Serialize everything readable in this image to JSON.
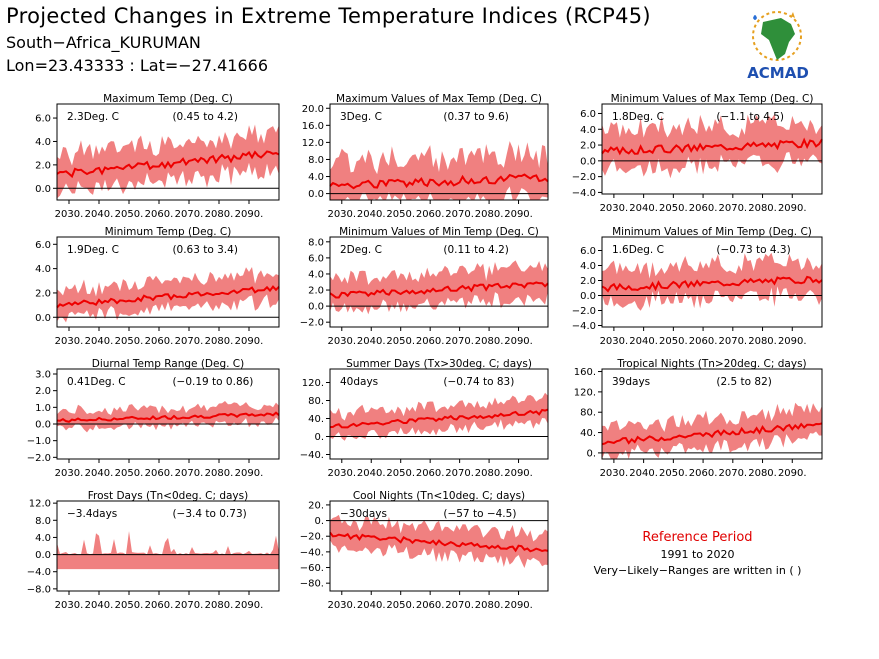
{
  "header": {
    "title": "Projected Changes in Extreme Temperature Indices (RCP45)",
    "location": "South−Africa_KURUMAN",
    "coords": "Lon=23.43333 : Lat=−27.41666"
  },
  "logo": {
    "text": "ACMAD",
    "icon": "africa-logo-icon"
  },
  "reference": {
    "title": "Reference Period",
    "years": "1991 to 2020",
    "note": "Very−Likely−Ranges are written in ( )"
  },
  "colors": {
    "band": "#f08080",
    "line": "#ee0000",
    "ref_title": "#e00000"
  },
  "chart_data": [
    {
      "id": "p1",
      "type": "area",
      "title": "Maximum Temp (Deg. C)",
      "mean_label": "2.3Deg. C",
      "range_label": "(0.45 to 4.2)",
      "ylim": [
        -1.0,
        7.2
      ],
      "yticks": [
        0.0,
        2.0,
        4.0,
        6.0
      ],
      "ytick_labels": [
        "0.0",
        "2.0",
        "4.0",
        "6.0"
      ],
      "xlim": [
        2026,
        2100
      ],
      "xticks": [
        2030,
        2040,
        2050,
        2060,
        2070,
        2080,
        2090
      ],
      "xtick_labels": [
        "2030.",
        "2040.",
        "2050.",
        "2060.",
        "2070.",
        "2080.",
        "2090."
      ],
      "mean_start": 1.2,
      "mean_end": 3.0,
      "spread": 1.8,
      "seed": 1
    },
    {
      "id": "p2",
      "type": "area",
      "title": "Maximum Values of Max Temp (Deg. C)",
      "mean_label": "3Deg. C",
      "range_label": "(0.37 to 9.6)",
      "ylim": [
        -1.5,
        21
      ],
      "yticks": [
        0.0,
        4.0,
        8.0,
        12.0,
        16.0,
        20.0
      ],
      "ytick_labels": [
        "0.0",
        "4.0",
        "8.0",
        "12.0",
        "16.0",
        "20.0"
      ],
      "xlim": [
        2026,
        2100
      ],
      "xticks": [
        2030,
        2040,
        2050,
        2060,
        2070,
        2080,
        2090
      ],
      "xtick_labels": [
        "2030.",
        "2040.",
        "2050.",
        "2060.",
        "2070.",
        "2080.",
        "2090."
      ],
      "mean_start": 2.0,
      "mean_end": 3.6,
      "spread": 6.0,
      "seed": 2
    },
    {
      "id": "p3",
      "type": "area",
      "title": "Minimum Values of Max Temp (Deg. C)",
      "mean_label": "1.8Deg. C",
      "range_label": "(−1.1 to 4.5)",
      "ylim": [
        -4.2,
        7.2
      ],
      "yticks": [
        -4.0,
        -2.0,
        0.0,
        2.0,
        4.0,
        6.0
      ],
      "ytick_labels": [
        "−4.0",
        "−2.0",
        "0.0",
        "2.0",
        "4.0",
        "6.0"
      ],
      "xlim": [
        2026,
        2100
      ],
      "xticks": [
        2030,
        2040,
        2050,
        2060,
        2070,
        2080,
        2090
      ],
      "xtick_labels": [
        "2030.",
        "2040.",
        "2050.",
        "2060.",
        "2070.",
        "2080.",
        "2090."
      ],
      "mean_start": 1.2,
      "mean_end": 2.3,
      "spread": 2.8,
      "seed": 3
    },
    {
      "id": "p4",
      "type": "area",
      "title": "Minimum Temp (Deg. C)",
      "mean_label": "1.9Deg. C",
      "range_label": "(0.63 to 3.4)",
      "ylim": [
        -0.8,
        6.6
      ],
      "yticks": [
        0.0,
        2.0,
        4.0,
        6.0
      ],
      "ytick_labels": [
        "0.0",
        "2.0",
        "4.0",
        "6.0"
      ],
      "xlim": [
        2026,
        2100
      ],
      "xticks": [
        2030,
        2040,
        2050,
        2060,
        2070,
        2080,
        2090
      ],
      "xtick_labels": [
        "2030.",
        "2040.",
        "2050.",
        "2060.",
        "2070.",
        "2080.",
        "2090."
      ],
      "mean_start": 1.0,
      "mean_end": 2.4,
      "spread": 1.3,
      "seed": 4
    },
    {
      "id": "p5",
      "type": "area",
      "title": "Minimum Values of Min Temp (Deg. C)",
      "mean_label": "2Deg. C",
      "range_label": "(0.11 to 4.2)",
      "ylim": [
        -2.6,
        8.6
      ],
      "yticks": [
        -2.0,
        0.0,
        2.0,
        4.0,
        6.0,
        8.0
      ],
      "ytick_labels": [
        "−2.0",
        "0.0",
        "2.0",
        "4.0",
        "6.0",
        "8.0"
      ],
      "xlim": [
        2026,
        2100
      ],
      "xticks": [
        2030,
        2040,
        2050,
        2060,
        2070,
        2080,
        2090
      ],
      "xtick_labels": [
        "2030.",
        "2040.",
        "2050.",
        "2060.",
        "2070.",
        "2080.",
        "2090."
      ],
      "mean_start": 1.3,
      "mean_end": 2.8,
      "spread": 2.2,
      "seed": 5
    },
    {
      "id": "p6",
      "type": "area",
      "title": "Minimum Values of Min Temp (Deg. C)",
      "mean_label": "1.6Deg. C",
      "range_label": "(−0.73 to 4.3)",
      "ylim": [
        -4.2,
        7.8
      ],
      "yticks": [
        -4.0,
        -2.0,
        0.0,
        2.0,
        4.0,
        6.0
      ],
      "ytick_labels": [
        "−4.0",
        "−2.0",
        "0.0",
        "2.0",
        "4.0",
        "6.0"
      ],
      "xlim": [
        2026,
        2100
      ],
      "xticks": [
        2030,
        2040,
        2050,
        2060,
        2070,
        2080,
        2090
      ],
      "xtick_labels": [
        "2030.",
        "2040.",
        "2050.",
        "2060.",
        "2070.",
        "2080.",
        "2090."
      ],
      "mean_start": 1.0,
      "mean_end": 2.2,
      "spread": 2.6,
      "seed": 6
    },
    {
      "id": "p7",
      "type": "area",
      "title": "Diurnal Temp Range (Deg. C)",
      "mean_label": "0.41Deg. C",
      "range_label": "(−0.19 to 0.86)",
      "ylim": [
        -2.1,
        3.3
      ],
      "yticks": [
        -2.0,
        -1.0,
        0.0,
        1.0,
        2.0,
        3.0
      ],
      "ytick_labels": [
        "−2.0",
        "−1.0",
        "0.0",
        "1.0",
        "2.0",
        "3.0"
      ],
      "xlim": [
        2026,
        2100
      ],
      "xticks": [
        2030,
        2040,
        2050,
        2060,
        2070,
        2080,
        2090
      ],
      "xtick_labels": [
        "2030.",
        "2040.",
        "2050.",
        "2060.",
        "2070.",
        "2080.",
        "2090."
      ],
      "mean_start": 0.2,
      "mean_end": 0.6,
      "spread": 0.6,
      "seed": 7
    },
    {
      "id": "p8",
      "type": "area",
      "title": "Summer Days (Tx>30deg. C; days)",
      "mean_label": "40days",
      "range_label": "(−0.74 to 83)",
      "ylim": [
        -50,
        150
      ],
      "yticks": [
        -40,
        0,
        40,
        80,
        120
      ],
      "ytick_labels": [
        "−40.",
        "0.",
        "40.",
        "80.",
        "120."
      ],
      "xlim": [
        2026,
        2100
      ],
      "xticks": [
        2030,
        2040,
        2050,
        2060,
        2070,
        2080,
        2090
      ],
      "xtick_labels": [
        "2030.",
        "2040.",
        "2050.",
        "2060.",
        "2070.",
        "2080.",
        "2090."
      ],
      "mean_start": 22,
      "mean_end": 55,
      "spread": 30,
      "seed": 8
    },
    {
      "id": "p9",
      "type": "area",
      "title": "Tropical Nights (Tn>20deg. C; days)",
      "mean_label": "39days",
      "range_label": "(2.5 to 82)",
      "ylim": [
        -12,
        165
      ],
      "yticks": [
        0,
        40,
        80,
        120,
        160
      ],
      "ytick_labels": [
        "0.",
        "40.",
        "80.",
        "120.",
        "160."
      ],
      "xlim": [
        2026,
        2100
      ],
      "xticks": [
        2030,
        2040,
        2050,
        2060,
        2070,
        2080,
        2090
      ],
      "xtick_labels": [
        "2030.",
        "2040.",
        "2050.",
        "2060.",
        "2070.",
        "2080.",
        "2090."
      ],
      "mean_start": 20,
      "mean_end": 55,
      "spread": 32,
      "seed": 9
    },
    {
      "id": "p10",
      "type": "area",
      "title": "Frost Days (Tn<0deg. C; days)",
      "mean_label": "−3.4days",
      "range_label": "(−3.4 to 0.73)",
      "ylim": [
        -8.5,
        12.5
      ],
      "yticks": [
        -8.0,
        -4.0,
        0.0,
        4.0,
        8.0,
        12.0
      ],
      "ytick_labels": [
        "−8.0",
        "−4.0",
        "0.0",
        "4.0",
        "8.0",
        "12.0"
      ],
      "xlim": [
        2026,
        2100
      ],
      "xticks": [
        2030,
        2040,
        2050,
        2060,
        2070,
        2080,
        2090
      ],
      "xtick_labels": [
        "2030.",
        "2040.",
        "2050.",
        "2060.",
        "2070.",
        "2080.",
        "2090."
      ],
      "mean_start": -3.4,
      "mean_end": -3.4,
      "spread": 0,
      "frost": true,
      "seed": 10
    },
    {
      "id": "p11",
      "type": "area",
      "title": "Cool Nights (Tn<10deg. C; days)",
      "mean_label": "−30days",
      "range_label": "(−57 to −4.5)",
      "ylim": [
        -90,
        25
      ],
      "yticks": [
        -80,
        -60,
        -40,
        -20,
        0,
        20
      ],
      "ytick_labels": [
        "−80.",
        "−60.",
        "−40.",
        "−20.",
        "0.",
        "20."
      ],
      "xlim": [
        2026,
        2100
      ],
      "xticks": [
        2030,
        2040,
        2050,
        2060,
        2070,
        2080,
        2090
      ],
      "xtick_labels": [
        "2030.",
        "2040.",
        "2050.",
        "2060.",
        "2070.",
        "2080.",
        "2090."
      ],
      "mean_start": -18,
      "mean_end": -38,
      "spread": 20,
      "seed": 11
    }
  ]
}
